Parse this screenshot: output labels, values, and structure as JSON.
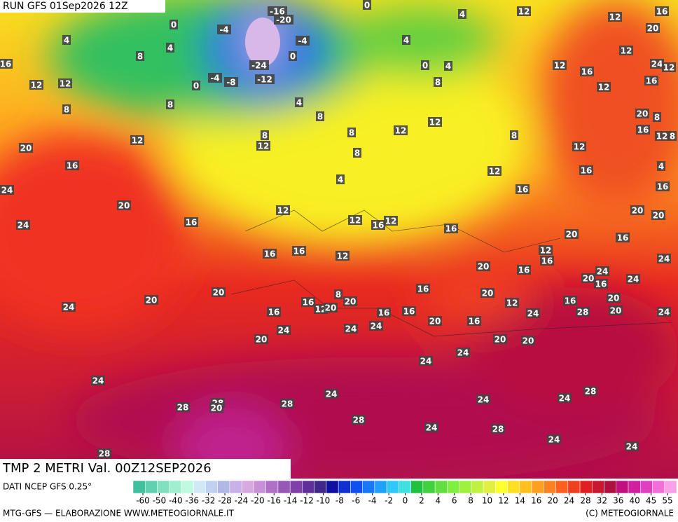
{
  "header": {
    "run": "RUN GFS 01Sep2026 12Z"
  },
  "title": "TMP 2 METRI Val. 00Z12SEP2026",
  "source": "DATI NCEP GFS 0.25°",
  "credit_left": "MTG-GFS — ELABORAZIONE WWW.METEOGIORNALE.IT",
  "credit_right": "(C) METEOGIORNALE",
  "scale": {
    "colors": [
      "#40c0a0",
      "#60d0b0",
      "#80e0c0",
      "#a0f0d0",
      "#c0f8e0",
      "#d0e8f8",
      "#c0d0f0",
      "#b0b8e8",
      "#c8b0e8",
      "#d8a8e0",
      "#c890d8",
      "#b070c8",
      "#9858b8",
      "#8040a8",
      "#603098",
      "#402888",
      "#1010a0",
      "#1030d0",
      "#1050f0",
      "#1878f8",
      "#20a0f8",
      "#30c8f8",
      "#40e0e0",
      "#20c040",
      "#40d040",
      "#60e040",
      "#80f040",
      "#a0f040",
      "#c0f040",
      "#e0f040",
      "#ffff30",
      "#ffe020",
      "#ffc020",
      "#ffa020",
      "#ff8020",
      "#ff6020",
      "#f04020",
      "#e02020",
      "#c81830",
      "#b01040",
      "#c01080",
      "#d020a0",
      "#e040c0",
      "#f070d8",
      "#f8a0e8"
    ],
    "ticks": [
      -60,
      -50,
      -40,
      -36,
      -32,
      -28,
      -24,
      -20,
      -16,
      -14,
      -12,
      -10,
      -8,
      -6,
      -4,
      -2,
      0,
      2,
      4,
      6,
      8,
      10,
      12,
      14,
      16,
      20,
      24,
      28,
      32,
      36,
      40,
      45,
      55
    ]
  },
  "map_labels": [
    0,
    12,
    16,
    12,
    20,
    4,
    4,
    0,
    4,
    8,
    4,
    -4,
    -16,
    -20,
    -4,
    -24,
    0,
    -12,
    -8,
    -4,
    0,
    8,
    16,
    12,
    12,
    8,
    4,
    8,
    8,
    12,
    12,
    20,
    16,
    24,
    20,
    24,
    16,
    8,
    8,
    4,
    12,
    12,
    8,
    0,
    4,
    8,
    12,
    16,
    12,
    12,
    24,
    12,
    16,
    20,
    8,
    16,
    12,
    8,
    12,
    12,
    16,
    16,
    4,
    16,
    20,
    20,
    12,
    12,
    16,
    12,
    16,
    20,
    16,
    16,
    16,
    12,
    20,
    16,
    12,
    16,
    24,
    24,
    20,
    16,
    24,
    20,
    20,
    24,
    16,
    16,
    12,
    20,
    20,
    8,
    16,
    16,
    16,
    20,
    12,
    16,
    20,
    20,
    28,
    24,
    24,
    24,
    24,
    24,
    20,
    16,
    20,
    20,
    20,
    24,
    24,
    24,
    28,
    24,
    24,
    24,
    28,
    20,
    28,
    28,
    28,
    24,
    28,
    24,
    24,
    28
  ]
}
